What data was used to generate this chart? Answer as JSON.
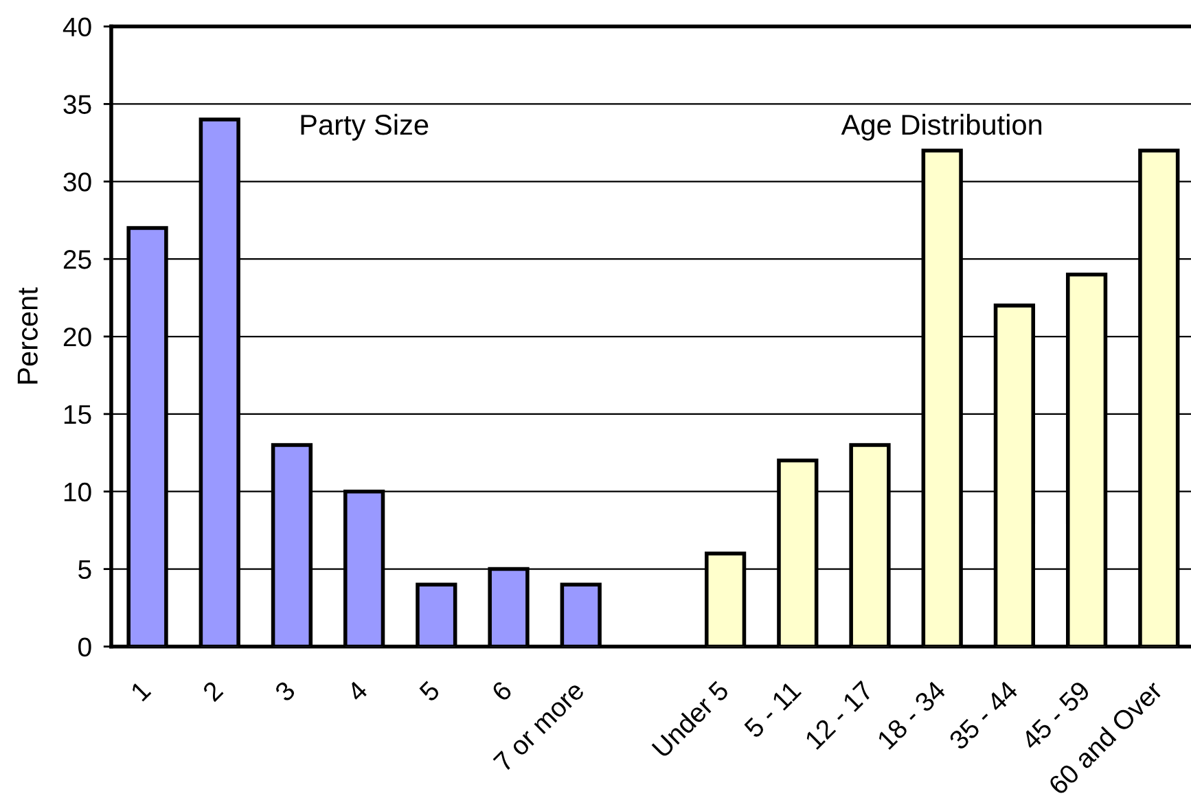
{
  "chart_data": {
    "type": "bar",
    "ylabel": "Percent",
    "categories": [
      "1",
      "2",
      "3",
      "4",
      "5",
      "6",
      "7 or more",
      null,
      "Under 5",
      "5 - 11",
      "12 - 17",
      "18 - 34",
      "35 - 44",
      "45 - 59",
      "60 and Over"
    ],
    "series": [
      {
        "name": "Party Size",
        "color": "#9999ff",
        "values": [
          27,
          34,
          13,
          10,
          4,
          5,
          4,
          null,
          null,
          null,
          null,
          null,
          null,
          null,
          null
        ]
      },
      {
        "name": "Age Distribution",
        "color": "#ffffcc",
        "values": [
          null,
          null,
          null,
          null,
          null,
          null,
          null,
          null,
          6,
          12,
          13,
          32,
          22,
          24,
          32
        ]
      }
    ],
    "ylim": [
      0,
      40
    ],
    "yticks": [
      0,
      5,
      10,
      15,
      20,
      25,
      30,
      35,
      40
    ],
    "grid": "y"
  }
}
